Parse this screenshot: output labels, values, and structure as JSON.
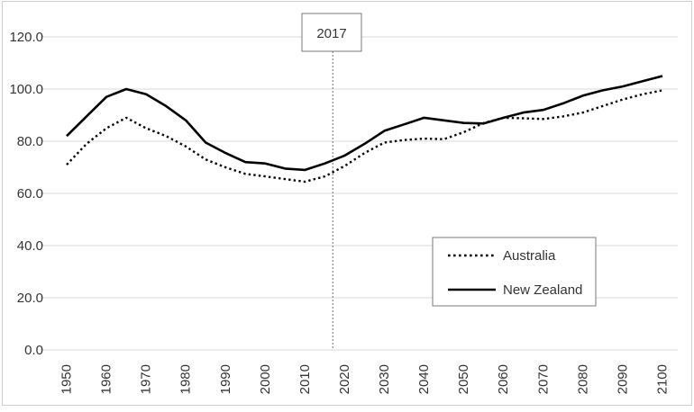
{
  "chart_data": {
    "type": "line",
    "x": [
      1950,
      1955,
      1960,
      1965,
      1970,
      1975,
      1980,
      1985,
      1990,
      1995,
      2000,
      2005,
      2010,
      2015,
      2020,
      2025,
      2030,
      2035,
      2040,
      2045,
      2050,
      2055,
      2060,
      2065,
      2070,
      2075,
      2080,
      2085,
      2090,
      2095,
      2100
    ],
    "x_ticks": [
      "1950",
      "1960",
      "1970",
      "1980",
      "1990",
      "2000",
      "2010",
      "2020",
      "2030",
      "2040",
      "2050",
      "2060",
      "2070",
      "2080",
      "2090",
      "2100"
    ],
    "y_ticks": [
      "0.0",
      "20.0",
      "40.0",
      "60.0",
      "80.0",
      "100.0",
      "120.0"
    ],
    "ylim": [
      0,
      120
    ],
    "xlim": [
      1950,
      2100
    ],
    "grid": "horizontal",
    "legend_position": "bottom-right",
    "series": [
      {
        "name": "Australia",
        "style": "dotted",
        "values": [
          71,
          79,
          85,
          89,
          85,
          82,
          78,
          73,
          70,
          67.5,
          66.5,
          65.5,
          64.5,
          66.5,
          70.5,
          75.5,
          79.5,
          80.5,
          81,
          80.8,
          83.5,
          87,
          89,
          88.8,
          88.5,
          89.5,
          91,
          93.5,
          96,
          98,
          99.5
        ]
      },
      {
        "name": "New Zealand",
        "style": "solid",
        "values": [
          82,
          89.5,
          97,
          100,
          98,
          93.5,
          88,
          79.5,
          75.5,
          72,
          71.5,
          69.5,
          69,
          71.5,
          74.5,
          79,
          84,
          86.5,
          89,
          88,
          87,
          86.8,
          89,
          91,
          92,
          94.5,
          97.5,
          99.5,
          101,
          103,
          105
        ]
      }
    ],
    "annotations": [
      {
        "label": "2017",
        "x": 2017
      }
    ]
  }
}
